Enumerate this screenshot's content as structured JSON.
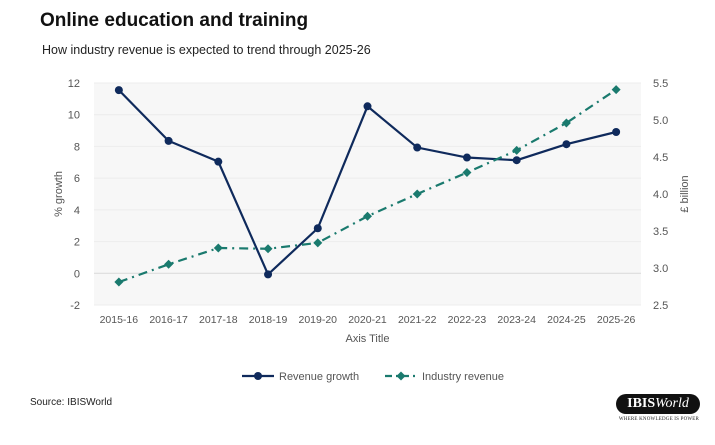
{
  "chart_data": {
    "type": "line",
    "title": "Online education and training",
    "subtitle": "How industry revenue is expected to trend through 2025-26",
    "xlabel": "Axis Title",
    "ylabel": "% growth",
    "y2label": "£ billion",
    "categories": [
      "2015-16",
      "2016-17",
      "2017-18",
      "2018-19",
      "2019-20",
      "2020-21",
      "2021-22",
      "2022-23",
      "2023-24",
      "2024-25",
      "2025-26"
    ],
    "ylim": [
      -2,
      12
    ],
    "yticks": [
      "-2",
      "0",
      "2",
      "4",
      "6",
      "8",
      "10",
      "12"
    ],
    "y2lim": [
      2.5,
      5.5
    ],
    "y2ticks": [
      "2.5",
      "3.0",
      "3.5",
      "4.0",
      "4.5",
      "5.0",
      "5.5"
    ],
    "grid": true,
    "legend_position": "bottom",
    "series": [
      {
        "name": "Revenue growth",
        "axis": "left",
        "color": "#0f2a5c",
        "marker": "circle",
        "style": "solid",
        "values": [
          11.55,
          8.35,
          7.04,
          -0.07,
          2.84,
          10.53,
          7.93,
          7.3,
          7.13,
          8.14,
          8.91
        ]
      },
      {
        "name": "Industry revenue",
        "axis": "right",
        "color": "#1a7a6e",
        "marker": "diamond",
        "style": "dashdot",
        "values": [
          2.81,
          3.05,
          3.27,
          3.26,
          3.34,
          3.7,
          4.0,
          4.29,
          4.59,
          4.96,
          5.41
        ]
      }
    ]
  },
  "footer": {
    "source": "Source: IBISWorld",
    "logo_text": "IBISWorld",
    "logo_tagline": "WHERE KNOWLEDGE IS POWER"
  }
}
